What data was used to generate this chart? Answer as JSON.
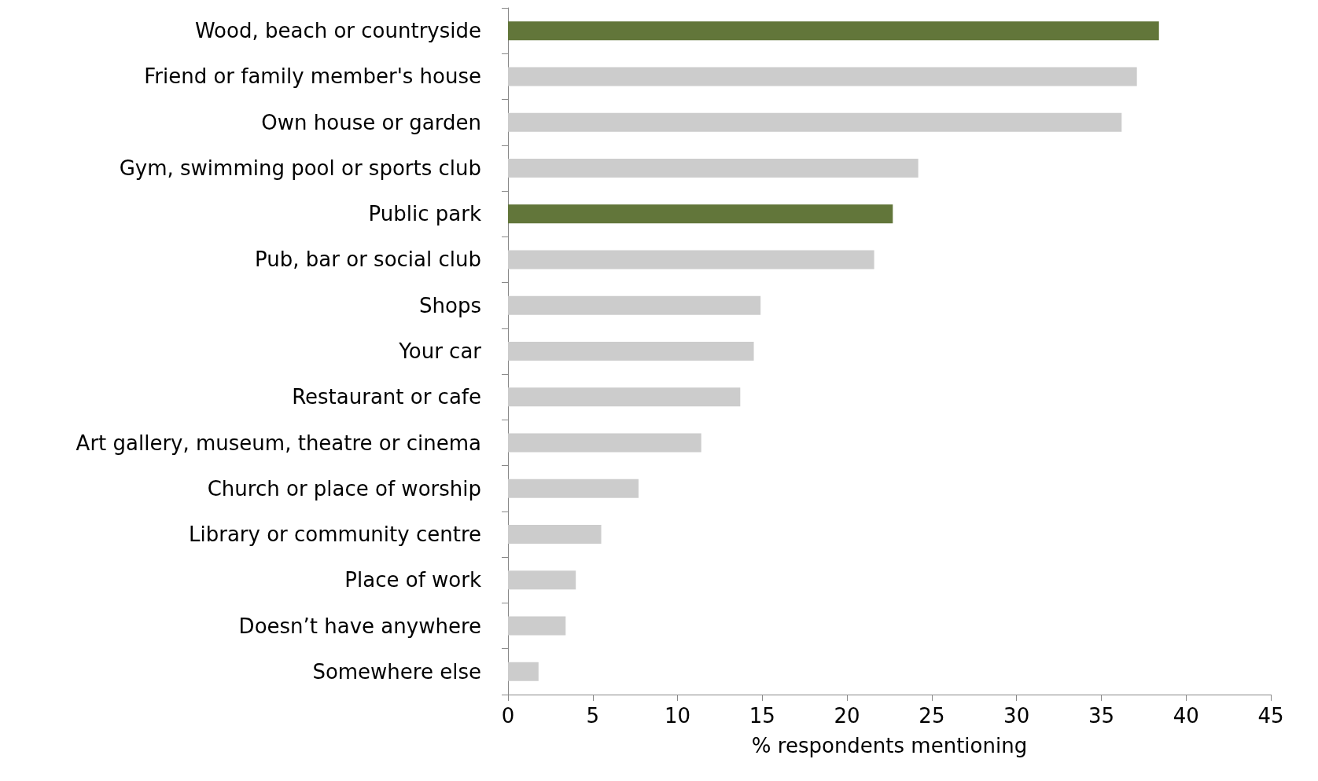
{
  "chart_data": {
    "type": "bar",
    "orientation": "horizontal",
    "xlabel": "% respondents mentioning",
    "categories": [
      "Wood, beach or countryside",
      "Friend or family member's house",
      "Own house or garden",
      "Gym, swimming pool or sports club",
      "Public park",
      "Pub, bar or social club",
      "Shops",
      "Your car",
      "Restaurant or cafe",
      "Art gallery, museum, theatre or cinema",
      "Church or place of worship",
      "Library or community centre",
      "Place of work",
      "Doesn’t have anywhere",
      "Somewhere else"
    ],
    "values": [
      38.4,
      37.1,
      36.2,
      24.2,
      22.7,
      21.6,
      14.9,
      14.5,
      13.7,
      11.4,
      7.7,
      5.5,
      4.0,
      3.4,
      1.8
    ],
    "colors": [
      "#62763a",
      "#cccccc",
      "#cccccc",
      "#cccccc",
      "#62763a",
      "#cccccc",
      "#cccccc",
      "#cccccc",
      "#cccccc",
      "#cccccc",
      "#cccccc",
      "#cccccc",
      "#cccccc",
      "#cccccc",
      "#cccccc"
    ],
    "xlim": [
      0,
      45
    ],
    "xticks": [
      0,
      5,
      10,
      15,
      20,
      25,
      30,
      35,
      40,
      45
    ],
    "grid": false
  }
}
